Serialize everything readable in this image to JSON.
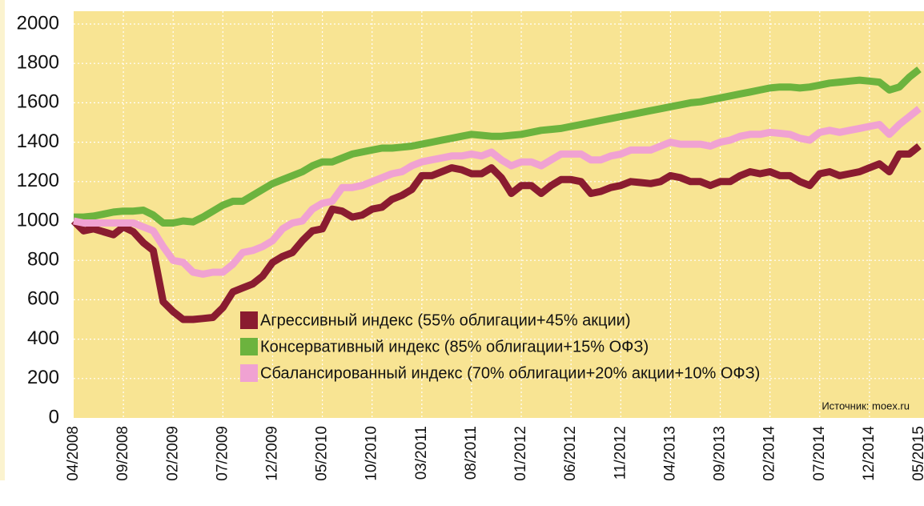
{
  "chart_data": {
    "type": "line",
    "categories": [
      "04/2008",
      null,
      null,
      null,
      null,
      "09/2008",
      null,
      null,
      null,
      null,
      "02/2009",
      null,
      null,
      null,
      null,
      "07/2009",
      null,
      null,
      null,
      null,
      "12/2009",
      null,
      null,
      null,
      null,
      "05/2010",
      null,
      null,
      null,
      null,
      "10/2010",
      null,
      null,
      null,
      null,
      "03/2011",
      null,
      null,
      null,
      null,
      "08/2011",
      null,
      null,
      null,
      null,
      "01/2012",
      null,
      null,
      null,
      null,
      "06/2012",
      null,
      null,
      null,
      null,
      "11/2012",
      null,
      null,
      null,
      null,
      "04/2013",
      null,
      null,
      null,
      null,
      "09/2013",
      null,
      null,
      null,
      null,
      "02/2014",
      null,
      null,
      null,
      null,
      "07/2014",
      null,
      null,
      null,
      null,
      "12/2014",
      null,
      null,
      null,
      null,
      "05/2015"
    ],
    "series": [
      {
        "name": "Агрессивный индекс (55% облигации+45% акции)",
        "color": "#8a1c30",
        "values": [
          1000,
          950,
          960,
          945,
          930,
          970,
          945,
          890,
          850,
          590,
          540,
          500,
          500,
          505,
          510,
          560,
          640,
          660,
          680,
          720,
          790,
          820,
          840,
          900,
          950,
          960,
          1060,
          1050,
          1020,
          1030,
          1060,
          1070,
          1110,
          1130,
          1160,
          1230,
          1230,
          1250,
          1270,
          1260,
          1240,
          1240,
          1270,
          1220,
          1140,
          1180,
          1180,
          1140,
          1180,
          1210,
          1210,
          1200,
          1140,
          1150,
          1170,
          1180,
          1200,
          1195,
          1190,
          1200,
          1230,
          1220,
          1200,
          1200,
          1180,
          1200,
          1200,
          1230,
          1250,
          1240,
          1250,
          1230,
          1230,
          1200,
          1180,
          1240,
          1250,
          1230,
          1240,
          1250,
          1270,
          1290,
          1250,
          1340,
          1340,
          1380
        ]
      },
      {
        "name": "Консервативный индекс (85% облигации+15% ОФЗ)",
        "color": "#6cb33e",
        "values": [
          1020,
          1020,
          1025,
          1035,
          1045,
          1050,
          1050,
          1055,
          1030,
          990,
          990,
          1000,
          995,
          1020,
          1050,
          1080,
          1100,
          1100,
          1130,
          1160,
          1190,
          1210,
          1230,
          1250,
          1280,
          1300,
          1300,
          1320,
          1340,
          1350,
          1360,
          1370,
          1370,
          1375,
          1380,
          1390,
          1400,
          1410,
          1420,
          1430,
          1440,
          1435,
          1430,
          1430,
          1435,
          1440,
          1450,
          1460,
          1465,
          1470,
          1480,
          1490,
          1500,
          1510,
          1520,
          1530,
          1540,
          1550,
          1560,
          1570,
          1580,
          1590,
          1600,
          1605,
          1615,
          1625,
          1635,
          1645,
          1655,
          1665,
          1675,
          1680,
          1680,
          1675,
          1680,
          1690,
          1700,
          1705,
          1710,
          1715,
          1710,
          1705,
          1665,
          1680,
          1730,
          1770
        ]
      },
      {
        "name": "Сбалансированный индекс (70% облигации+20% акции+10% ОФЗ)",
        "color": "#f0a2d2",
        "values": [
          1000,
          990,
          990,
          990,
          990,
          990,
          990,
          970,
          950,
          870,
          800,
          790,
          740,
          730,
          740,
          740,
          780,
          840,
          850,
          870,
          900,
          960,
          990,
          1000,
          1060,
          1090,
          1100,
          1170,
          1170,
          1180,
          1200,
          1220,
          1240,
          1250,
          1280,
          1300,
          1310,
          1320,
          1330,
          1330,
          1340,
          1330,
          1350,
          1310,
          1280,
          1300,
          1300,
          1280,
          1310,
          1340,
          1340,
          1340,
          1310,
          1310,
          1330,
          1340,
          1360,
          1360,
          1360,
          1380,
          1400,
          1390,
          1390,
          1390,
          1380,
          1400,
          1410,
          1430,
          1440,
          1440,
          1450,
          1445,
          1440,
          1420,
          1410,
          1450,
          1460,
          1450,
          1460,
          1470,
          1480,
          1490,
          1440,
          1490,
          1530,
          1570
        ]
      }
    ],
    "ylim": [
      0,
      2000
    ],
    "yticks": [
      0,
      200,
      400,
      600,
      800,
      1000,
      1200,
      1400,
      1600,
      1800,
      2000
    ],
    "grid": true,
    "annotation": "Источник: moex.ru"
  }
}
